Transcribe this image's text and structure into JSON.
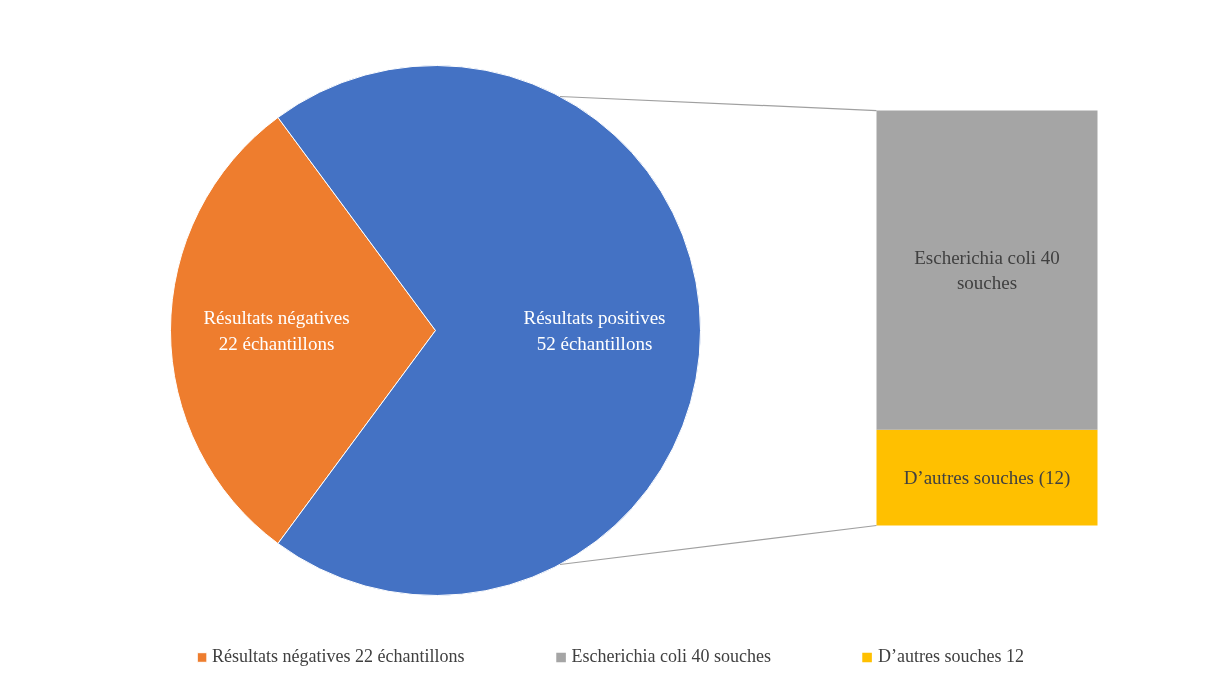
{
  "chart_data": [
    {
      "type": "pie",
      "categories": [
        "Résultats négatives 22 échantillons",
        null
      ],
      "values": [
        22,
        52
      ],
      "colors": [
        "#ee7d2e",
        "#4472c4"
      ],
      "value_labels": [
        "Résultats négatives\n22 échantillons",
        "Résultats positives\n52 échantillons"
      ],
      "legend": "bottom"
    },
    {
      "type": "bar",
      "stacked": true,
      "categories": [
        null
      ],
      "legend": "bottom",
      "series": [
        {
          "name": "D’autres souches 12",
          "color": "#ffc000",
          "values": [
            12
          ],
          "value_labels": [
            "D’autres souches (12)"
          ]
        },
        {
          "name": "Escherichia coli 40 souches",
          "color": "#a5a5a5",
          "values": [
            40
          ],
          "value_labels": [
            "Escherichia coli 40\nsouches"
          ]
        }
      ]
    }
  ]
}
